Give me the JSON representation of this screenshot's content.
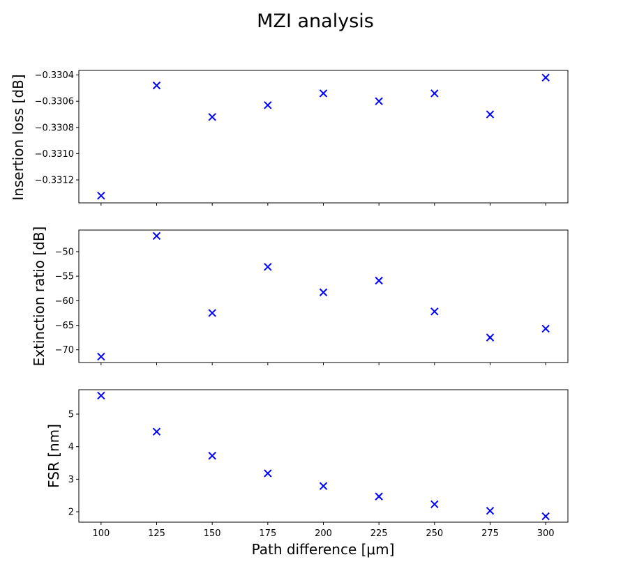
{
  "title": "MZI analysis",
  "marker_color": "#0000ff",
  "chart_data": [
    {
      "type": "scatter",
      "marker": "x",
      "title": "",
      "xlabel": "",
      "ylabel": "Insertion loss [dB]",
      "x": [
        100,
        125,
        150,
        175,
        200,
        225,
        250,
        275,
        300
      ],
      "y": [
        -0.33132,
        -0.33048,
        -0.33072,
        -0.33063,
        -0.33054,
        -0.3306,
        -0.33054,
        -0.3307,
        -0.33042
      ],
      "xlim": [
        90,
        310
      ],
      "ylim": [
        -0.331375,
        -0.330365
      ],
      "yticks": [
        -0.3312,
        -0.331,
        -0.3308,
        -0.3306,
        -0.3304
      ],
      "ytick_labels": [
        "−0.3312",
        "−0.3310",
        "−0.3308",
        "−0.3306",
        "−0.3304"
      ],
      "xticks": [
        100,
        125,
        150,
        175,
        200,
        225,
        250,
        275,
        300
      ],
      "xtick_labels": []
    },
    {
      "type": "scatter",
      "marker": "x",
      "title": "",
      "xlabel": "",
      "ylabel": "Extinction ratio [dB]",
      "x": [
        100,
        125,
        150,
        175,
        200,
        225,
        250,
        275,
        300
      ],
      "y": [
        -71.4,
        -46.8,
        -62.5,
        -53.1,
        -58.3,
        -55.9,
        -62.2,
        -67.5,
        -65.7
      ],
      "xlim": [
        90,
        310
      ],
      "ylim": [
        -72.6,
        -45.6
      ],
      "yticks": [
        -70,
        -65,
        -60,
        -55,
        -50
      ],
      "ytick_labels": [
        "−70",
        "−65",
        "−60",
        "−55",
        "−50"
      ],
      "xticks": [
        100,
        125,
        150,
        175,
        200,
        225,
        250,
        275,
        300
      ],
      "xtick_labels": []
    },
    {
      "type": "scatter",
      "marker": "x",
      "title": "",
      "xlabel": "Path difference [μm]",
      "ylabel": "FSR [nm]",
      "x": [
        100,
        125,
        150,
        175,
        200,
        225,
        250,
        275,
        300
      ],
      "y": [
        5.57,
        4.46,
        3.72,
        3.18,
        2.79,
        2.47,
        2.23,
        2.03,
        1.86
      ],
      "xlim": [
        90,
        310
      ],
      "ylim": [
        1.68,
        5.75
      ],
      "yticks": [
        2,
        3,
        4,
        5
      ],
      "ytick_labels": [
        "2",
        "3",
        "4",
        "5"
      ],
      "xticks": [
        100,
        125,
        150,
        175,
        200,
        225,
        250,
        275,
        300
      ],
      "xtick_labels": [
        "100",
        "125",
        "150",
        "175",
        "200",
        "225",
        "250",
        "275",
        "300"
      ]
    }
  ]
}
